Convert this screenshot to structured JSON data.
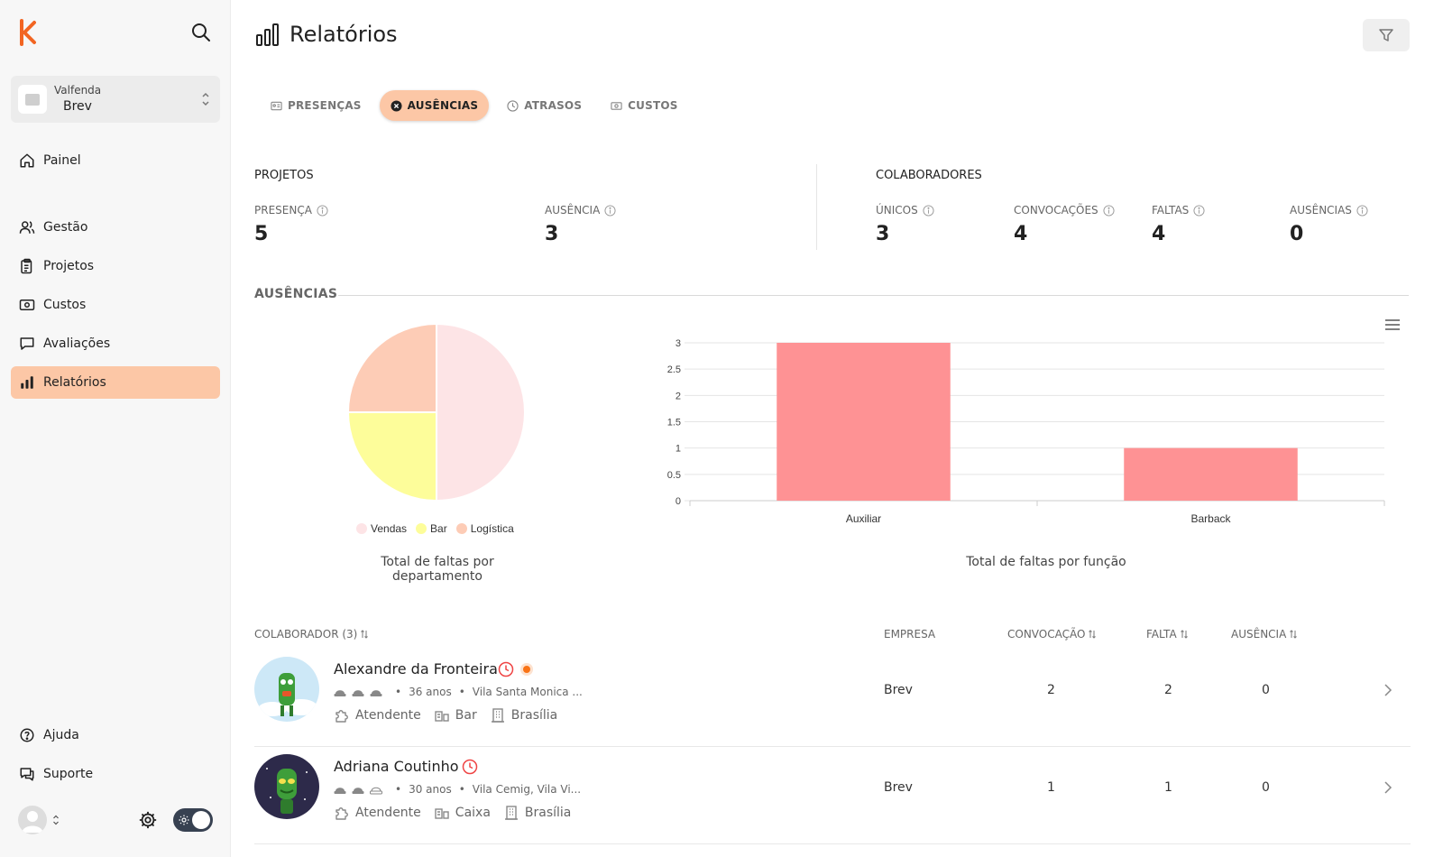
{
  "org": {
    "top": "Valfenda",
    "name": "Brev"
  },
  "nav": {
    "painel": "Painel",
    "gestao": "Gestão",
    "projetos": "Projetos",
    "custos": "Custos",
    "avaliacoes": "Avaliações",
    "relatorios": "Relatórios",
    "ajuda": "Ajuda",
    "suporte": "Suporte"
  },
  "page": {
    "title": "Relatórios"
  },
  "tabs": [
    {
      "label": "PRESENÇAS",
      "icon": "id-card-icon",
      "active": false
    },
    {
      "label": "AUSÊNCIAS",
      "icon": "x-circle-icon",
      "active": true
    },
    {
      "label": "ATRASOS",
      "icon": "clock-icon",
      "active": false
    },
    {
      "label": "CUSTOS",
      "icon": "money-icon",
      "active": false
    }
  ],
  "stats": {
    "projetos": {
      "title": "PROJETOS",
      "presenca": {
        "label": "PRESENÇA",
        "value": "5"
      },
      "ausencia": {
        "label": "AUSÊNCIA",
        "value": "3"
      }
    },
    "colaboradores": {
      "title": "COLABORADORES",
      "unicos": {
        "label": "ÚNICOS",
        "value": "3"
      },
      "convocacoes": {
        "label": "CONVOCAÇÕES",
        "value": "4"
      },
      "faltas": {
        "label": "FALTAS",
        "value": "4"
      },
      "ausencias": {
        "label": "AUSÊNCIAS",
        "value": "0"
      }
    }
  },
  "section": {
    "title": "AUSÊNCIAS"
  },
  "chart_data": [
    {
      "type": "pie",
      "title": "Total de faltas por departamento",
      "labels": [
        "Vendas",
        "Bar",
        "Logística"
      ],
      "values": [
        2,
        1,
        1
      ],
      "colors": [
        "#fde4e6",
        "#fdfd9a",
        "#fdccb6"
      ],
      "legend": "bottom"
    },
    {
      "type": "bar",
      "title": "Total de faltas por função",
      "categories": [
        "Auxiliar",
        "Barback"
      ],
      "values": [
        3,
        1
      ],
      "ylim": [
        0,
        3
      ],
      "yticks": [
        "0",
        "0.5",
        "1",
        "1.5",
        "2",
        "2.5",
        "3"
      ],
      "color": "#fe9294",
      "grid": true
    }
  ],
  "table": {
    "headers": {
      "colaborador": "COLABORADOR (3)",
      "empresa": "EMPRESA",
      "convocacao": "CONVOCAÇÃO",
      "falta": "FALTA",
      "ausencia": "AUSÊNCIA"
    },
    "rows": [
      {
        "name": "Alexandre da Fronteira",
        "age": "36 anos",
        "location": "Vila Santa Monica ...",
        "role": "Atendente",
        "dept": "Bar",
        "city": "Brasília",
        "empresa": "Brev",
        "convocacao": "2",
        "falta": "2",
        "ausencia": "0",
        "hats": 3
      },
      {
        "name": "Adriana Coutinho",
        "age": "30 anos",
        "location": "Vila Cemig, Vila Vi...",
        "role": "Atendente",
        "dept": "Caixa",
        "city": "Brasília",
        "empresa": "Brev",
        "convocacao": "1",
        "falta": "1",
        "ausencia": "0",
        "hats": 2
      }
    ]
  }
}
